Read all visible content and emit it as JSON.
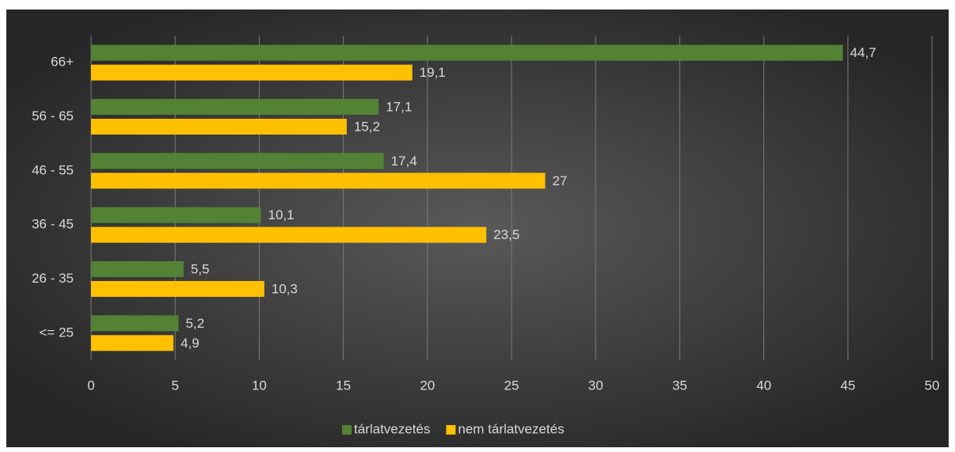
{
  "chart_data": {
    "type": "hbar",
    "categories": [
      "66+",
      "56 - 65",
      "46 - 55",
      "36 - 45",
      "26 - 35",
      "<= 25"
    ],
    "series": [
      {
        "name": "tárlatvezetés",
        "color": "#548235",
        "values": [
          44.7,
          17.1,
          17.4,
          10.1,
          5.5,
          5.2
        ],
        "value_labels": [
          "44,7",
          "17,1",
          "17,4",
          "10,1",
          "5,5",
          "5,2"
        ]
      },
      {
        "name": "nem tárlatvezetés",
        "color": "#ffc000",
        "values": [
          19.1,
          15.2,
          27,
          23.5,
          10.3,
          4.9
        ],
        "value_labels": [
          "19,1",
          "15,2",
          "27",
          "23,5",
          "10,3",
          "4,9"
        ]
      }
    ],
    "xlim": [
      0,
      50
    ],
    "xticks": [
      0,
      5,
      10,
      15,
      20,
      25,
      30,
      35,
      40,
      45,
      50
    ],
    "grid": true,
    "legend": "bottom"
  }
}
